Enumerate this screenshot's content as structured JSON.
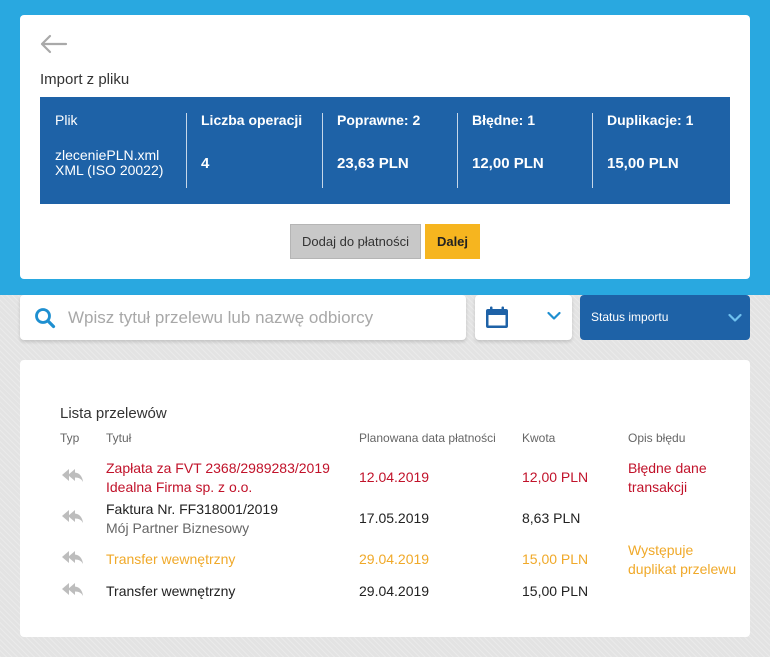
{
  "import": {
    "title": "Import z pliku",
    "summary": {
      "file_label": "Plik",
      "file_name": "zleceniePLN.xml",
      "file_format": "XML (ISO 20022)",
      "ops_label": "Liczba operacji",
      "ops_value": "4",
      "correct_label": "Poprawne: 2",
      "correct_value": "23,63 PLN",
      "wrong_label": "Błędne: 1",
      "wrong_value": "12,00 PLN",
      "dup_label": "Duplikacje: 1",
      "dup_value": "15,00 PLN"
    },
    "buttons": {
      "add_label": "Dodaj do płatności",
      "next_label": "Dalej"
    }
  },
  "filters": {
    "search_placeholder": "Wpisz tytuł przelewu lub nazwę odbiorcy",
    "status_label": "Status importu"
  },
  "list": {
    "title": "Lista przelewów",
    "headers": {
      "type": "Typ",
      "title": "Tytuł",
      "date": "Planowana data płatności",
      "amount": "Kwota",
      "error": "Opis błędu"
    },
    "rows": [
      {
        "title": "Zapłata za FVT 2368/2989283/2019",
        "subtitle": "Idealna Firma sp. z o.o.",
        "date": "12.04.2019",
        "amount": "12,00 PLN",
        "error": "Błędne dane transakcji",
        "status": "error"
      },
      {
        "title": "Faktura Nr. FF318001/2019",
        "subtitle": "Mój Partner Biznesowy",
        "date": "17.05.2019",
        "amount": "8,63 PLN",
        "error": "",
        "status": "ok"
      },
      {
        "title": "Transfer wewnętrzny",
        "subtitle": "",
        "date": "29.04.2019",
        "amount": "15,00 PLN",
        "error": "Występuje duplikat przelewu",
        "status": "duplicate"
      },
      {
        "title": "Transfer wewnętrzny",
        "subtitle": "",
        "date": "29.04.2019",
        "amount": "15,00 PLN",
        "error": "",
        "status": "ok"
      }
    ]
  },
  "icons": {
    "back": "arrow-left-icon",
    "search": "search-icon",
    "calendar": "calendar-icon",
    "dropdown": "chevron-down-icon",
    "transfer_type": "reply-all-icon"
  },
  "colors": {
    "top_background": "#29a8e0",
    "summary_blue": "#1e62a7",
    "next_button": "#f6b51f",
    "error_red": "#c1122a",
    "duplicate_orange": "#f0a929"
  }
}
